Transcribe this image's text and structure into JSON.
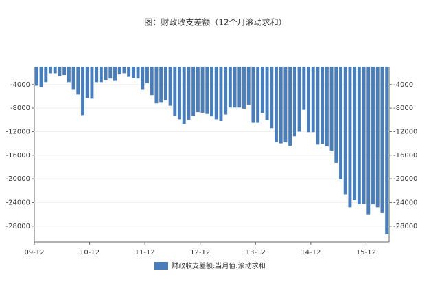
{
  "chart_data": {
    "type": "bar",
    "title": "图：财政收支差额（12个月滚动求和）",
    "categories": [
      "09-12",
      null,
      null,
      null,
      null,
      null,
      null,
      null,
      null,
      null,
      null,
      null,
      "10-12",
      null,
      null,
      null,
      null,
      null,
      null,
      null,
      null,
      null,
      null,
      null,
      "11-12",
      null,
      null,
      null,
      null,
      null,
      null,
      null,
      null,
      null,
      null,
      null,
      "12-12",
      null,
      null,
      null,
      null,
      null,
      null,
      null,
      null,
      null,
      null,
      null,
      "13-12",
      null,
      null,
      null,
      null,
      null,
      null,
      null,
      null,
      null,
      null,
      null,
      "14-12",
      null,
      null,
      null,
      null,
      null,
      null,
      null,
      null,
      null,
      null,
      null,
      "15-12",
      null,
      null,
      null,
      null
    ],
    "series": [
      {
        "name": "财政收支差额:当月值:滚动求和",
        "color": "#4a7ebb",
        "values": [
          -4200,
          -4400,
          -3600,
          -2100,
          -2100,
          -2600,
          -2400,
          -3600,
          -4900,
          -5700,
          -9200,
          -6300,
          -6400,
          -3600,
          -3600,
          -3300,
          -3000,
          -3400,
          -2300,
          -2100,
          -2700,
          -2900,
          -3000,
          -4900,
          -3800,
          -5800,
          -7200,
          -7100,
          -6700,
          -7600,
          -9300,
          -9900,
          -10700,
          -10000,
          -9300,
          -8700,
          -8800,
          -9000,
          -9400,
          -9900,
          -10200,
          -9100,
          -7900,
          -7900,
          -7900,
          -8100,
          -7400,
          -10500,
          -10500,
          -8800,
          -10000,
          -11400,
          -13800,
          -14000,
          -13800,
          -14400,
          -12800,
          -12000,
          -8300,
          -12100,
          -12100,
          -14200,
          -14100,
          -14500,
          -15200,
          -17300,
          -20100,
          -22600,
          -24800,
          -23600,
          -24300,
          -24200,
          -26000,
          -24300,
          -24800,
          -25800,
          -29400
        ]
      }
    ],
    "ylim": [
      -30700,
      -1000
    ],
    "yticks": [
      -4000,
      -8000,
      -12000,
      -16000,
      -20000,
      -24000,
      -28000
    ],
    "grid": true
  }
}
